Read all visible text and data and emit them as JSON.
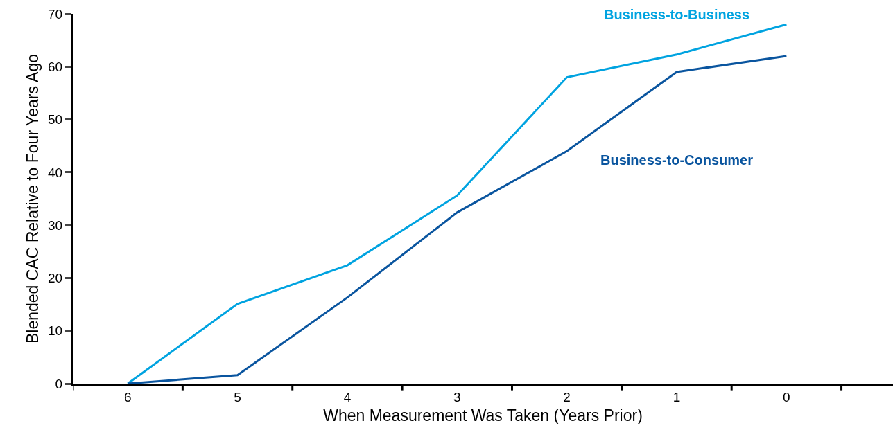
{
  "chart_data": {
    "type": "line",
    "xlabel": "When Measurement Was Taken (Years Prior)",
    "ylabel": "Blended CAC Relative to Four Years Ago",
    "categories": [
      "6",
      "5",
      "4",
      "3",
      "2",
      "1",
      "0"
    ],
    "series": [
      {
        "name": "Business-to-Business",
        "color": "#00a3e0",
        "values": [
          0,
          15.1,
          22.4,
          35.6,
          58.0,
          62.3,
          68.0
        ]
      },
      {
        "name": "Business-to-Consumer",
        "color": "#0a559f",
        "values": [
          0,
          1.6,
          16.3,
          32.4,
          44.0,
          59.0,
          62.0
        ]
      }
    ],
    "ylim": [
      0,
      70
    ],
    "yticks": [
      0,
      10,
      20,
      30,
      40,
      50,
      60,
      70
    ],
    "legend": false,
    "marker": "none",
    "line_style": "solid"
  }
}
